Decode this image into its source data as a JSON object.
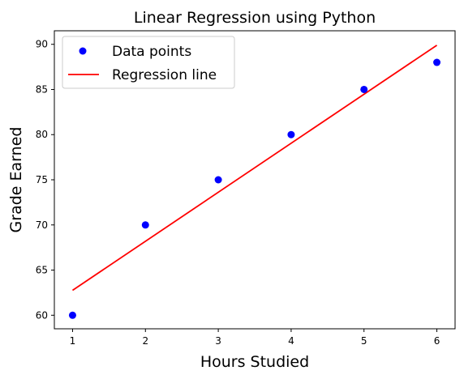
{
  "chart_data": {
    "type": "scatter",
    "title": "Linear Regression using Python",
    "xlabel": "Hours Studied",
    "ylabel": "Grade Earned",
    "xlim": [
      0.75,
      6.25
    ],
    "ylim": [
      58.5,
      91.5
    ],
    "x_ticks": [
      1,
      2,
      3,
      4,
      5,
      6
    ],
    "y_ticks": [
      60,
      65,
      70,
      75,
      80,
      85,
      90
    ],
    "grid": false,
    "legend": {
      "placement": "top-left",
      "entries": [
        {
          "label": "Data points",
          "marker": "circle",
          "color": "#0000ff"
        },
        {
          "label": "Regression line",
          "marker": "line",
          "color": "#ff0000"
        }
      ]
    },
    "series": [
      {
        "name": "Data points",
        "type": "scatter",
        "color": "#0000ff",
        "x": [
          1,
          2,
          3,
          4,
          5,
          6
        ],
        "y": [
          60,
          70,
          75,
          80,
          85,
          88
        ]
      },
      {
        "name": "Regression line",
        "type": "line",
        "color": "#ff0000",
        "x": [
          1,
          6
        ],
        "y": [
          62.76,
          89.9
        ]
      }
    ]
  }
}
